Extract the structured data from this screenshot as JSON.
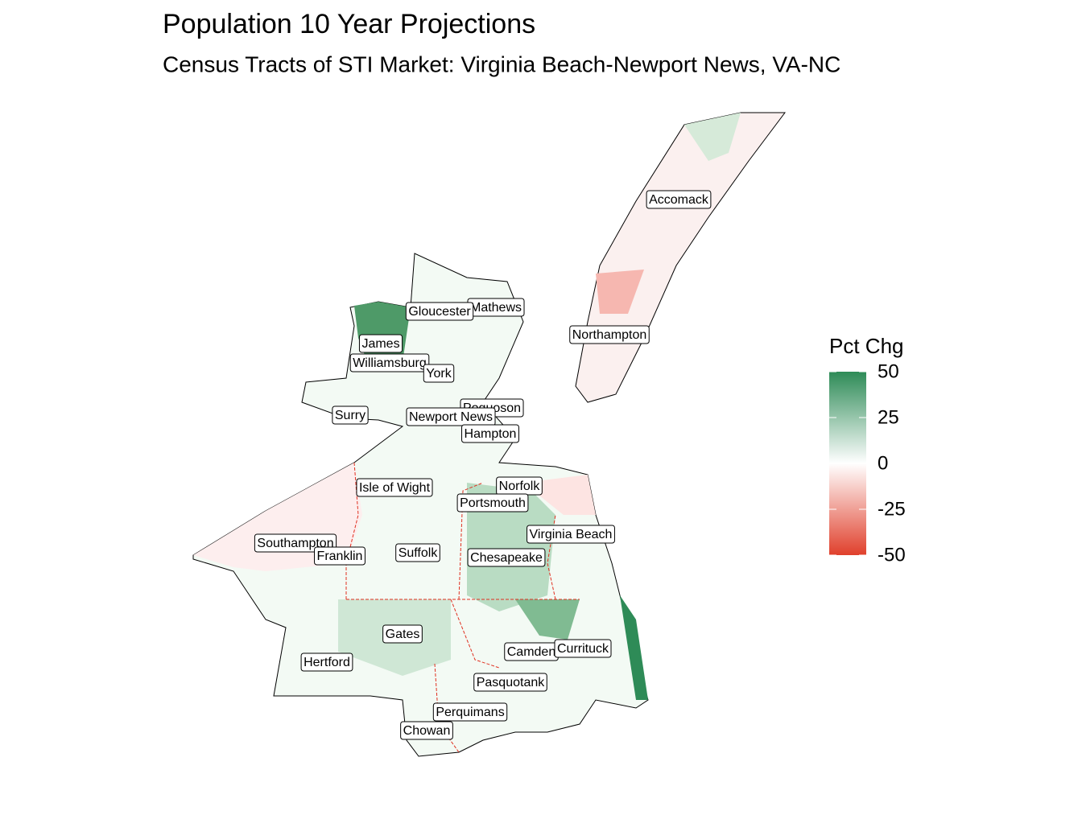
{
  "title": "Population 10 Year Projections",
  "subtitle": "Census Tracts of STI Market: Virginia Beach-Newport News, VA-NC",
  "legend": {
    "title": "Pct Chg",
    "limits": [
      -50,
      50
    ],
    "ticks": [
      50,
      25,
      0,
      -25,
      -50
    ],
    "colors": {
      "low": "#e0402c",
      "mid": "#ffffff",
      "high": "#2e8b57"
    }
  },
  "labels": [
    "Accomack",
    "Mathews",
    "Gloucester",
    "Northampton",
    "James",
    "Williamsburg",
    "York",
    "Poquoson",
    "Surry",
    "Newport News",
    "Hampton",
    "Isle of Wight",
    "Norfolk",
    "Portsmouth",
    "Virginia Beach",
    "Southampton",
    "Franklin",
    "Suffolk",
    "Chesapeake",
    "Gates",
    "Camden",
    "Currituck",
    "Hertford",
    "Pasquotank",
    "Perquimans",
    "Chowan"
  ]
}
